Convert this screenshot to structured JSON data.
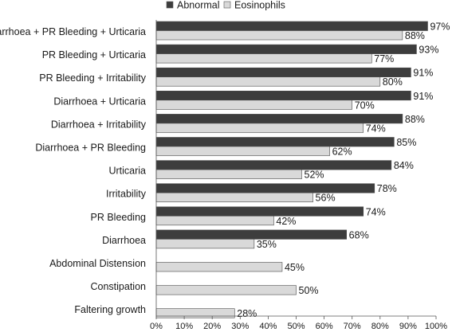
{
  "chart_data": {
    "type": "bar",
    "orientation": "horizontal",
    "categories": [
      "Diarrhoea + PR Bleeding + Urticaria",
      "PR Bleeding + Urticaria",
      "PR Bleeding + Irritability",
      "Diarrhoea + Urticaria",
      "Diarrhoea + Irritability",
      "Diarrhoea + PR Bleeding",
      "Urticaria",
      "Irritability",
      "PR Bleeding",
      "Diarrhoea",
      "Abdominal Distension",
      "Constipation",
      "Faltering growth"
    ],
    "series": [
      {
        "name": "Abnormal",
        "color": "#3d3d3d",
        "values": [
          97,
          93,
          91,
          91,
          88,
          85,
          84,
          78,
          74,
          68,
          null,
          null,
          null
        ]
      },
      {
        "name": "Eosinophils",
        "color": "#d9d9d9",
        "values": [
          88,
          77,
          80,
          70,
          74,
          62,
          52,
          56,
          42,
          35,
          45,
          50,
          28
        ]
      }
    ],
    "value_suffix": "%",
    "xlim": [
      0,
      100
    ],
    "xticks": [
      "0%",
      "10%",
      "20%",
      "30%",
      "40%",
      "50%",
      "60%",
      "70%",
      "80%",
      "90%",
      "100%"
    ],
    "legend_position": "top",
    "grid": false
  }
}
